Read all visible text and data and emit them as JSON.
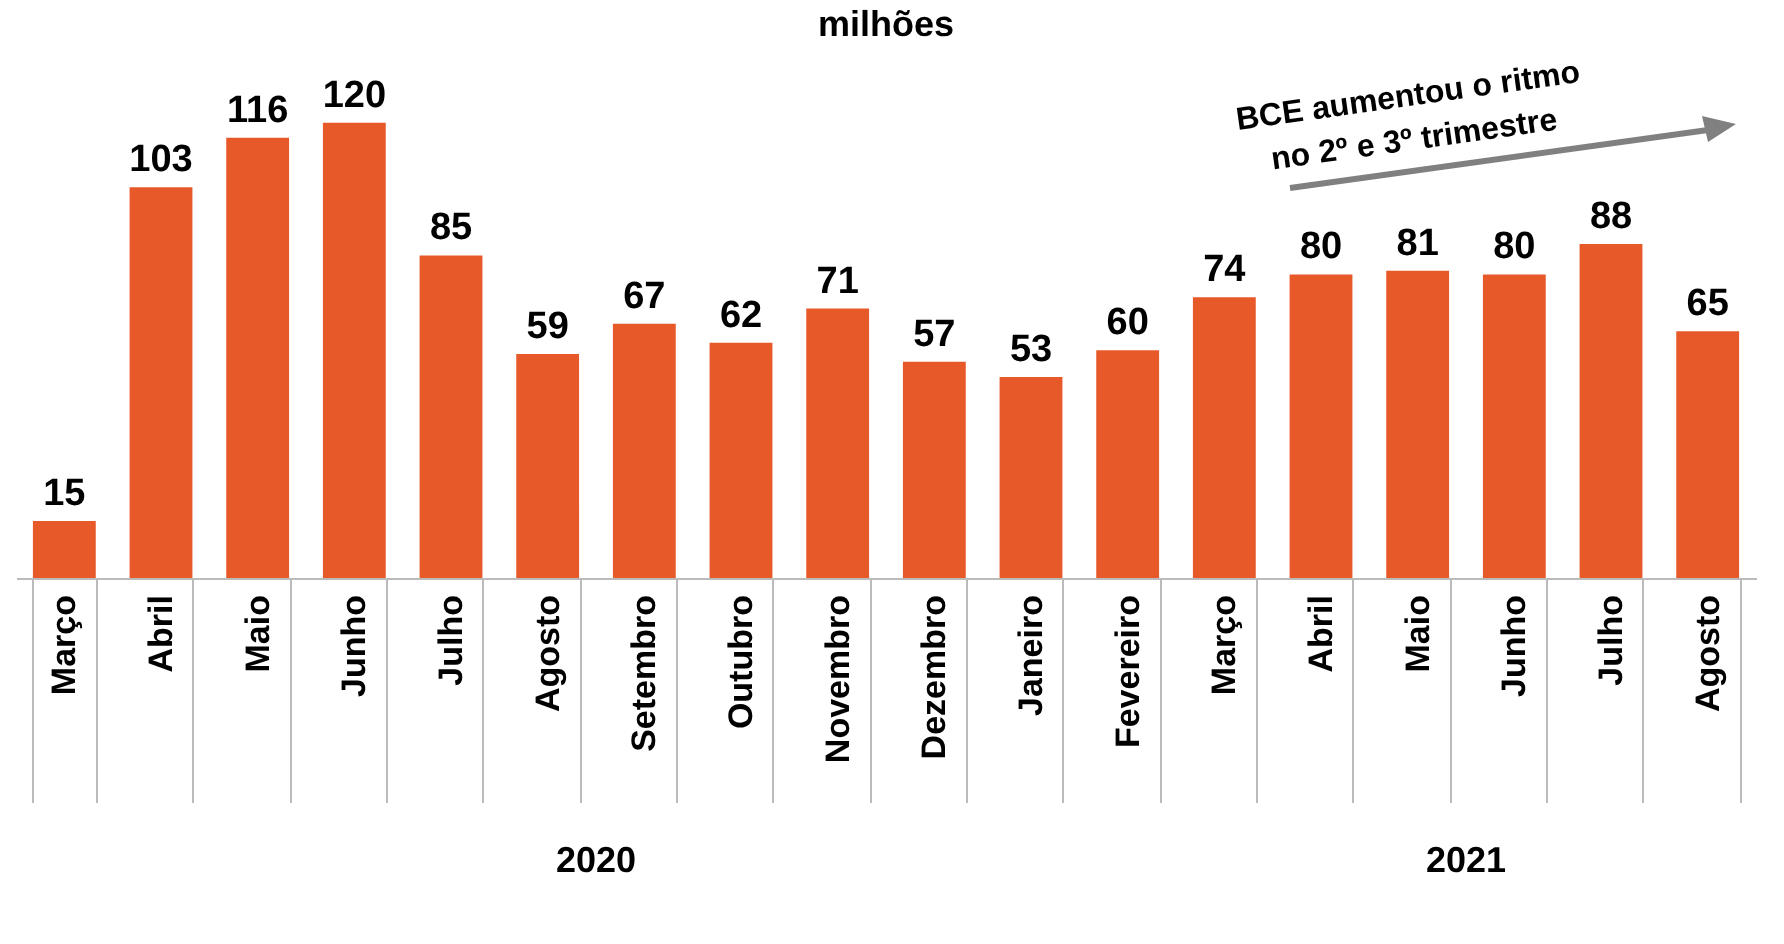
{
  "chart_data": {
    "type": "bar",
    "title": "milhões",
    "categories": [
      "Março",
      "Abril",
      "Maio",
      "Junho",
      "Julho",
      "Agosto",
      "Setembro",
      "Outubro",
      "Novembro",
      "Dezembro",
      "Janeiro",
      "Fevereiro",
      "Março",
      "Abril",
      "Maio",
      "Junho",
      "Julho",
      "Agosto"
    ],
    "values": [
      15,
      103,
      116,
      120,
      85,
      59,
      67,
      62,
      71,
      57,
      53,
      60,
      74,
      80,
      81,
      80,
      88,
      65
    ],
    "color": "#e8592a",
    "data_labels": true,
    "annotations": [
      "2020",
      "2021",
      "BCE aumentou o ritmo no 2º e 3º trimestre"
    ]
  }
}
